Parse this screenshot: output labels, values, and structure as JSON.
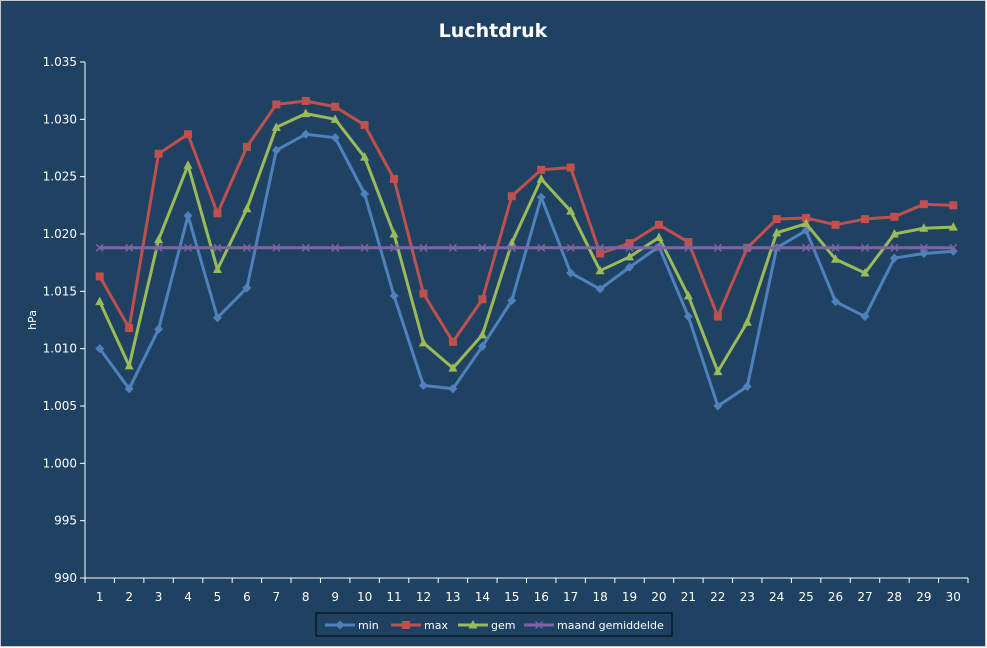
{
  "chart_data": {
    "type": "line",
    "title": "Luchtdruk",
    "xlabel": "",
    "ylabel": "hPa",
    "ylim": [
      990,
      1035
    ],
    "yticks": [
      990,
      995,
      1000,
      1005,
      1010,
      1015,
      1020,
      1025,
      1030,
      1035
    ],
    "ytick_labels": [
      "990",
      "995",
      "1.000",
      "1.005",
      "1.010",
      "1.015",
      "1.020",
      "1.025",
      "1.030",
      "1.035"
    ],
    "categories": [
      "1",
      "2",
      "3",
      "4",
      "5",
      "6",
      "7",
      "8",
      "9",
      "10",
      "11",
      "12",
      "13",
      "14",
      "15",
      "16",
      "17",
      "18",
      "19",
      "20",
      "21",
      "22",
      "23",
      "24",
      "25",
      "26",
      "27",
      "28",
      "29",
      "30"
    ],
    "legend_position": "bottom",
    "grid": false,
    "background_color": "#1f4263",
    "series": [
      {
        "name": "min",
        "color": "#4f81bd",
        "marker": "diamond",
        "values": [
          1010.0,
          1006.5,
          1011.7,
          1021.6,
          1012.7,
          1015.3,
          1027.3,
          1028.7,
          1028.4,
          1023.5,
          1014.6,
          1006.8,
          1006.5,
          1010.2,
          1014.2,
          1023.2,
          1016.6,
          1015.2,
          1017.1,
          1018.9,
          1012.8,
          1005.0,
          1006.7,
          1018.8,
          1020.3,
          1014.1,
          1012.8,
          1017.9,
          1018.3,
          1018.5
        ]
      },
      {
        "name": "max",
        "color": "#c0504d",
        "marker": "square",
        "values": [
          1016.3,
          1011.8,
          1027.0,
          1028.7,
          1021.8,
          1027.6,
          1031.3,
          1031.6,
          1031.1,
          1029.5,
          1024.8,
          1014.8,
          1010.6,
          1014.3,
          1023.3,
          1025.6,
          1025.8,
          1018.3,
          1019.2,
          1020.8,
          1019.3,
          1012.8,
          1018.8,
          1021.3,
          1021.4,
          1020.8,
          1021.3,
          1021.5,
          1022.6,
          1022.5
        ]
      },
      {
        "name": "gem",
        "color": "#9bbb59",
        "marker": "triangle",
        "values": [
          1014.1,
          1008.5,
          1019.5,
          1026.0,
          1016.9,
          1022.2,
          1029.3,
          1030.5,
          1030.0,
          1026.7,
          1020.0,
          1010.5,
          1008.3,
          1011.2,
          1019.2,
          1024.8,
          1022.0,
          1016.8,
          1018.0,
          1019.7,
          1014.6,
          1008.0,
          1012.3,
          1020.1,
          1020.9,
          1017.8,
          1016.6,
          1020.0,
          1020.5,
          1020.6
        ]
      },
      {
        "name": "maand gemiddelde",
        "color": "#8064a2",
        "marker": "x",
        "values": [
          1018.8,
          1018.8,
          1018.8,
          1018.8,
          1018.8,
          1018.8,
          1018.8,
          1018.8,
          1018.8,
          1018.8,
          1018.8,
          1018.8,
          1018.8,
          1018.8,
          1018.8,
          1018.8,
          1018.8,
          1018.8,
          1018.8,
          1018.8,
          1018.8,
          1018.8,
          1018.8,
          1018.8,
          1018.8,
          1018.8,
          1018.8,
          1018.8,
          1018.8,
          1018.8
        ]
      }
    ]
  }
}
